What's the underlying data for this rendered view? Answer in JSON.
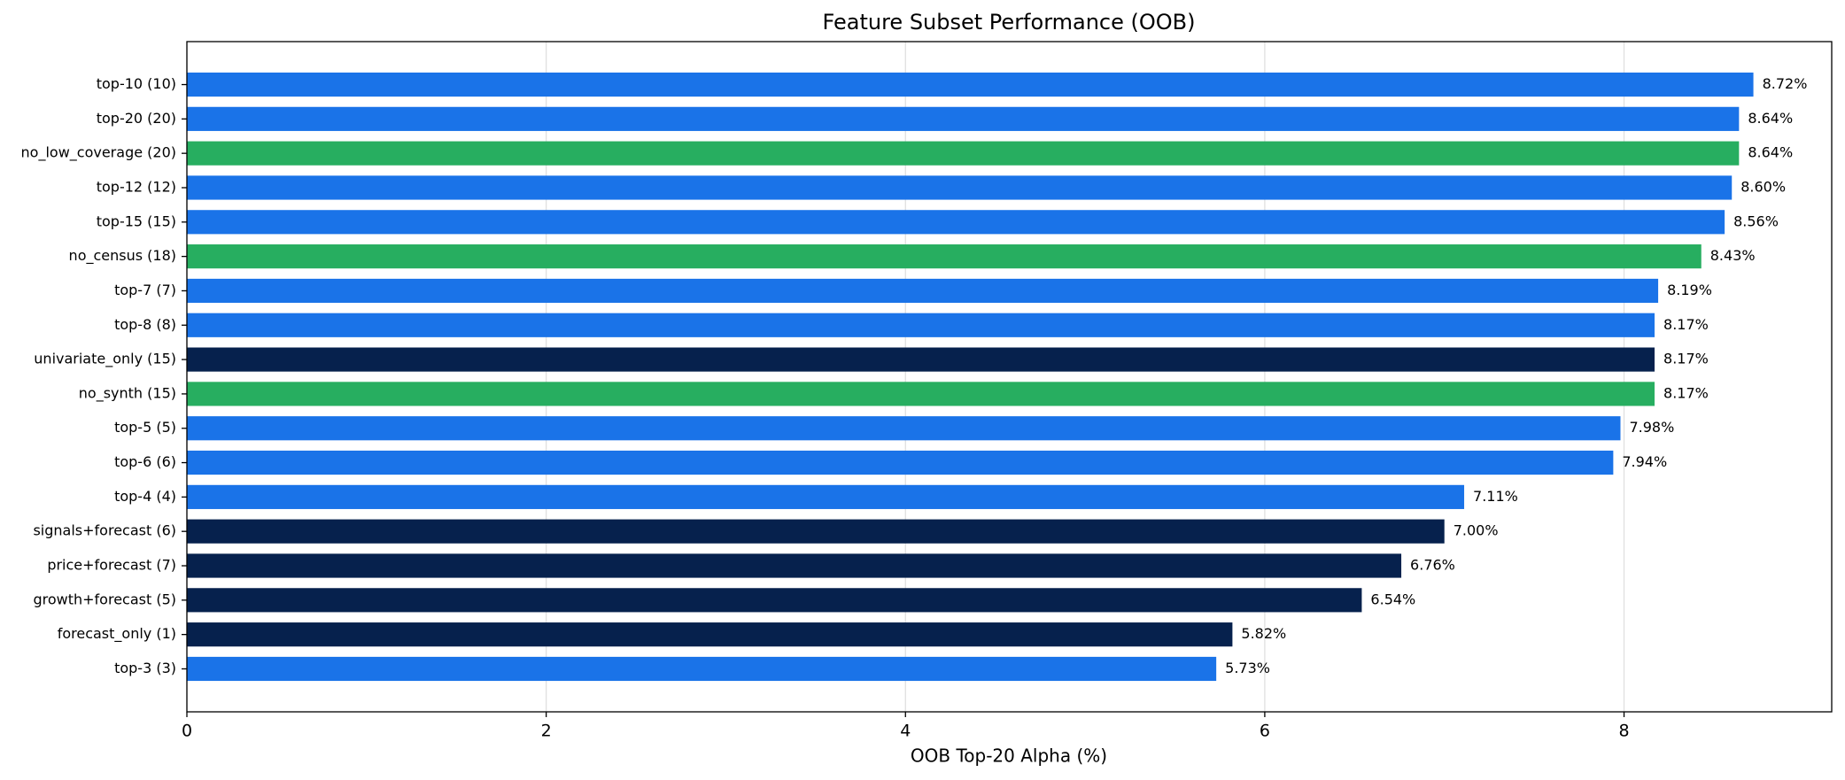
{
  "chart_data": {
    "type": "barh",
    "title": "Feature Subset Performance (OOB)",
    "xlabel": "OOB Top-20 Alpha (%)",
    "categories": [
      "top-10 (10)",
      "top-20 (20)",
      "no_low_coverage (20)",
      "top-12 (12)",
      "top-15 (15)",
      "no_census (18)",
      "top-7 (7)",
      "top-8 (8)",
      "univariate_only (15)",
      "no_synth (15)",
      "top-5 (5)",
      "top-6 (6)",
      "top-4 (4)",
      "signals+forecast (6)",
      "price+forecast (7)",
      "growth+forecast (5)",
      "forecast_only (1)",
      "top-3 (3)"
    ],
    "values": [
      8.72,
      8.64,
      8.64,
      8.6,
      8.56,
      8.43,
      8.19,
      8.17,
      8.17,
      8.17,
      7.98,
      7.94,
      7.11,
      7.0,
      6.76,
      6.54,
      5.82,
      5.73
    ],
    "value_labels": [
      "8.72%",
      "8.64%",
      "8.64%",
      "8.60%",
      "8.56%",
      "8.43%",
      "8.19%",
      "8.17%",
      "8.17%",
      "8.17%",
      "7.98%",
      "7.94%",
      "7.11%",
      "7.00%",
      "6.76%",
      "6.54%",
      "5.82%",
      "5.73%"
    ],
    "colors": [
      "#1a73e8",
      "#1a73e8",
      "#27ae60",
      "#1a73e8",
      "#1a73e8",
      "#27ae60",
      "#1a73e8",
      "#1a73e8",
      "#06214d",
      "#27ae60",
      "#1a73e8",
      "#1a73e8",
      "#1a73e8",
      "#06214d",
      "#06214d",
      "#06214d",
      "#06214d",
      "#1a73e8"
    ],
    "xlim": [
      0,
      9.156
    ],
    "xticks": [
      0,
      2,
      4,
      6,
      8
    ],
    "grid": true
  }
}
